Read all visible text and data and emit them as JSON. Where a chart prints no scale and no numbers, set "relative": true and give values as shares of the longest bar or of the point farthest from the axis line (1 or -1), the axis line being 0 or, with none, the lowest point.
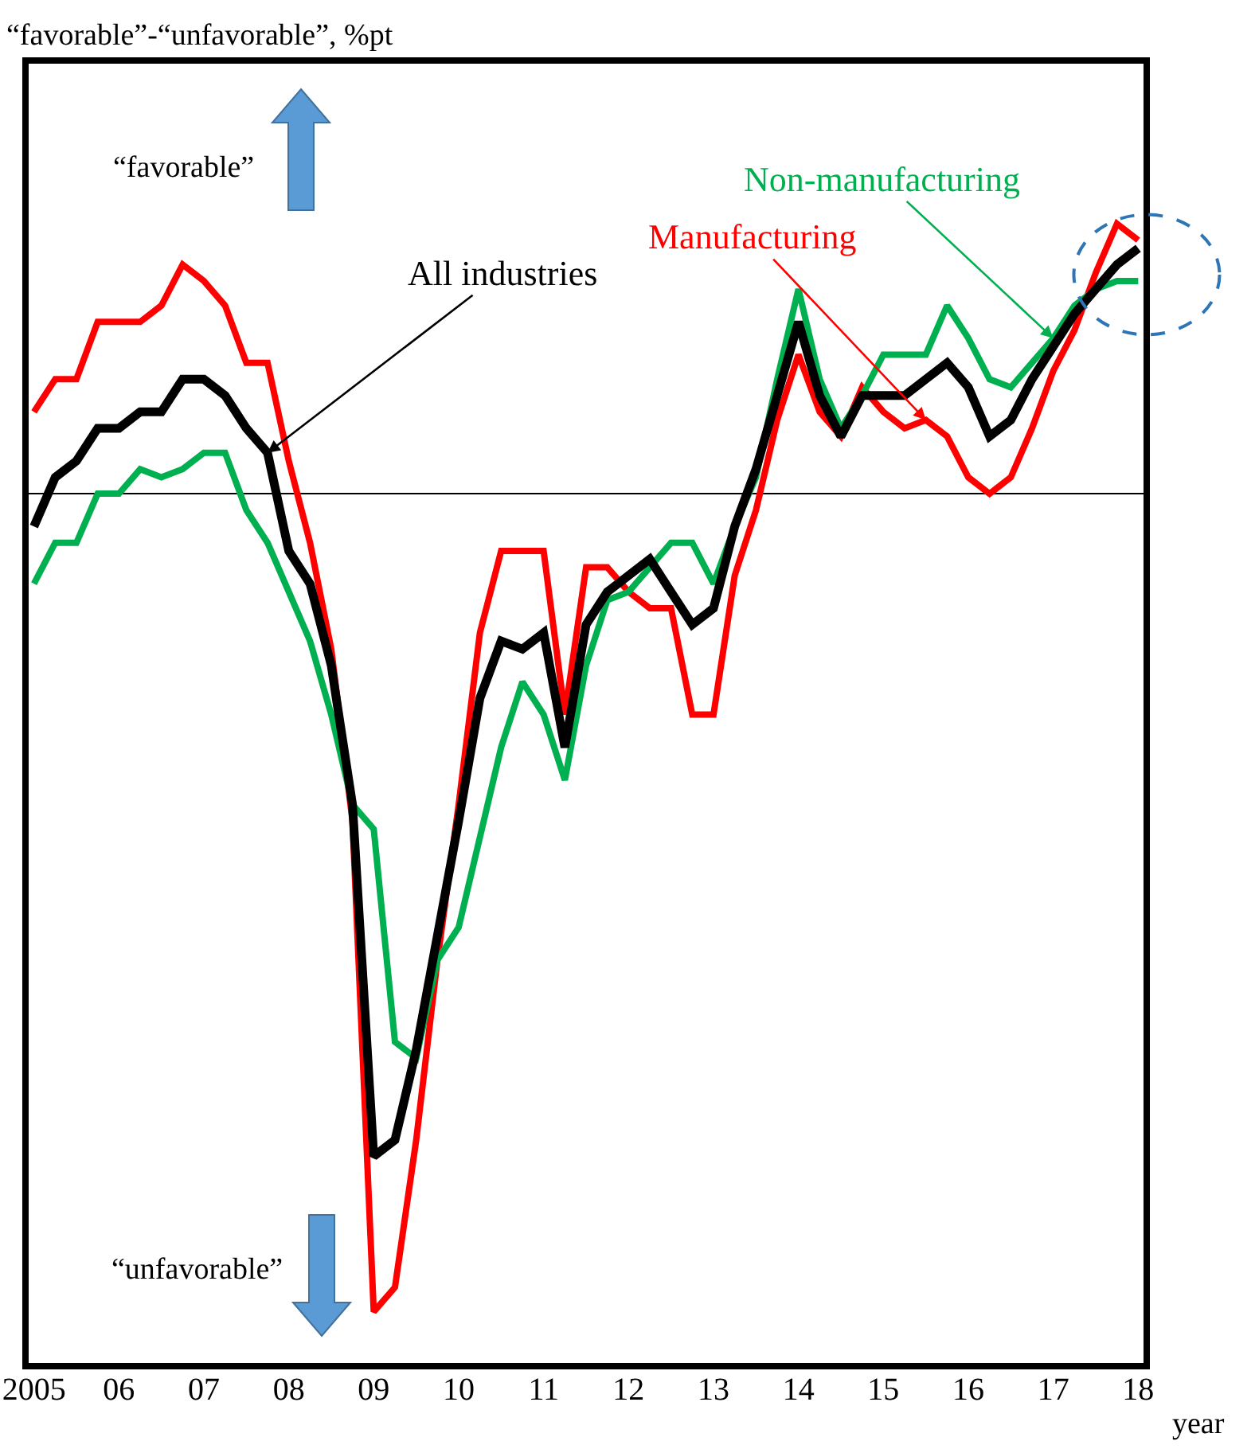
{
  "chart_data": {
    "type": "line",
    "relative": true,
    "xlabel": "year",
    "annotations": [
      "“favorable”-“unfavorable”, %pt",
      "“favorable”",
      "“unfavorable”"
    ],
    "x": [
      2005,
      2005.25,
      2005.5,
      2005.75,
      2006,
      2006.25,
      2006.5,
      2006.75,
      2007,
      2007.25,
      2007.5,
      2007.75,
      2008,
      2008.25,
      2008.5,
      2008.75,
      2009,
      2009.25,
      2009.5,
      2009.75,
      2010,
      2010.25,
      2010.5,
      2010.75,
      2011,
      2011.25,
      2011.5,
      2011.75,
      2012,
      2012.25,
      2012.5,
      2012.75,
      2013,
      2013.25,
      2013.5,
      2013.75,
      2014,
      2014.25,
      2014.5,
      2014.75,
      2015,
      2015.25,
      2015.5,
      2015.75,
      2016,
      2016.25,
      2016.5,
      2016.75,
      2017,
      2017.25,
      2017.5,
      2017.75,
      2018
    ],
    "xlim": [
      2004.9,
      2018.1
    ],
    "xticks": [
      2005,
      {
        "value": 2006,
        "label": "06"
      },
      {
        "value": 2007,
        "label": "07"
      },
      {
        "value": 2008,
        "label": "08"
      },
      {
        "value": 2009,
        "label": "09"
      },
      {
        "value": 2010,
        "label": "10"
      },
      {
        "value": 2011,
        "label": "11"
      },
      {
        "value": 2012,
        "label": "12"
      },
      {
        "value": 2013,
        "label": "13"
      },
      {
        "value": 2014,
        "label": "14"
      },
      {
        "value": 2015,
        "label": "15"
      },
      {
        "value": 2016,
        "label": "16"
      },
      {
        "value": 2017,
        "label": "17"
      },
      {
        "value": 2018,
        "label": "18"
      }
    ],
    "grid": false,
    "legend": false,
    "marker": "none",
    "line_style": "solid",
    "series": [
      {
        "name": "Manufacturing",
        "color": "#ff0000",
        "values": [
          0.1,
          0.14,
          0.14,
          0.21,
          0.21,
          0.21,
          0.23,
          0.28,
          0.26,
          0.23,
          0.16,
          0.16,
          0.04,
          -0.06,
          -0.19,
          -0.4,
          -1,
          -0.97,
          -0.79,
          -0.57,
          -0.38,
          -0.17,
          -0.07,
          -0.07,
          -0.07,
          -0.27,
          -0.09,
          -0.09,
          -0.12,
          -0.14,
          -0.14,
          -0.27,
          -0.27,
          -0.1,
          -0.02,
          0.09,
          0.17,
          0.1,
          0.07,
          0.13,
          0.1,
          0.08,
          0.09,
          0.07,
          0.02,
          0,
          0.02,
          0.08,
          0.15,
          0.2,
          0.27,
          0.33,
          0.31
        ]
      },
      {
        "name": "Non-manufacturing",
        "color": "#00b050",
        "values": [
          -0.11,
          -0.06,
          -0.06,
          0,
          0,
          0.03,
          0.02,
          0.03,
          0.05,
          0.05,
          -0.02,
          -0.06,
          -0.12,
          -0.18,
          -0.27,
          -0.38,
          -0.41,
          -0.67,
          -0.69,
          -0.57,
          -0.53,
          -0.42,
          -0.31,
          -0.23,
          -0.27,
          -0.35,
          -0.21,
          -0.13,
          -0.12,
          -0.09,
          -0.06,
          -0.06,
          -0.11,
          -0.04,
          0.02,
          0.14,
          0.25,
          0.14,
          0.08,
          0.12,
          0.17,
          0.17,
          0.17,
          0.23,
          0.19,
          0.14,
          0.13,
          0.16,
          0.19,
          0.23,
          0.25,
          0.26,
          0.26
        ]
      },
      {
        "name": "All industries",
        "color": "#000000",
        "values": [
          -0.04,
          0.02,
          0.04,
          0.08,
          0.08,
          0.1,
          0.1,
          0.14,
          0.14,
          0.12,
          0.08,
          0.05,
          -0.07,
          -0.11,
          -0.21,
          -0.38,
          -0.81,
          -0.79,
          -0.68,
          -0.54,
          -0.4,
          -0.25,
          -0.18,
          -0.19,
          -0.17,
          -0.31,
          -0.16,
          -0.12,
          -0.1,
          -0.08,
          -0.12,
          -0.16,
          -0.14,
          -0.04,
          0.03,
          0.12,
          0.21,
          0.12,
          0.07,
          0.12,
          0.12,
          0.12,
          0.14,
          0.16,
          0.13,
          0.07,
          0.09,
          0.14,
          0.18,
          0.22,
          0.25,
          0.28,
          0.3
        ]
      }
    ]
  }
}
